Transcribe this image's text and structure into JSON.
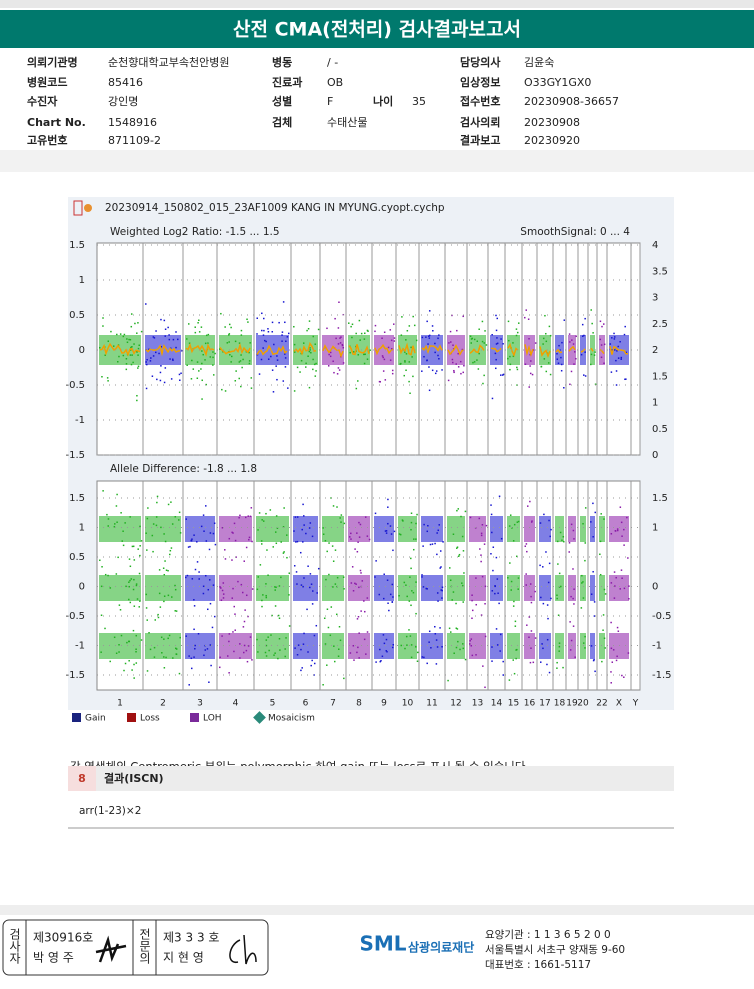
{
  "header": {
    "title": "산전 CMA(전처리) 검사결과보고서"
  },
  "info": {
    "left": [
      {
        "label": "의뢰기관명",
        "value": "순천향대학교부속천안병원"
      },
      {
        "label": "병원코드",
        "value": "85416"
      },
      {
        "label": "수진자",
        "value": "강인명"
      },
      {
        "label": "Chart No.",
        "value": "1548916"
      },
      {
        "label": "고유번호",
        "value": "871109-2"
      }
    ],
    "middle": [
      {
        "label": "병동",
        "value": "/ -"
      },
      {
        "label": "진료과",
        "value": "OB"
      },
      {
        "label": "성별",
        "value": "F"
      },
      {
        "label": "검체",
        "value": "수태산물"
      }
    ],
    "age": {
      "label": "나이",
      "value": "35"
    },
    "right": [
      {
        "label": "담당의사",
        "value": "김윤숙"
      },
      {
        "label": "임상정보",
        "value": "O33GY1GX0"
      },
      {
        "label": "접수번호",
        "value": "20230908-36657"
      },
      {
        "label": "검사의뢰",
        "value": "20230908"
      },
      {
        "label": "결과보고",
        "value": "20230920"
      }
    ]
  },
  "plot": {
    "filename": "20230914_150802_015_23AF1009 KANG IN MYUNG.cyopt.cychp",
    "top": {
      "label": "Weighted Log2 Ratio: -1.5 ... 1.5",
      "right_label": "SmoothSignal: 0 ... 4",
      "left_ticks": [
        "1.5",
        "1",
        "0.5",
        "0",
        "-0.5",
        "-1",
        "-1.5"
      ],
      "right_ticks": [
        "4",
        "3.5",
        "3",
        "2.5",
        "2",
        "1.5",
        "1",
        "0.5",
        "0"
      ]
    },
    "bottom": {
      "label": "Allele Difference: -1.8 ... 1.8",
      "left_ticks": [
        "1.5",
        "1",
        "0.5",
        "0",
        "-0.5",
        "-1",
        "-1.5"
      ],
      "right_ticks": [
        "1.5",
        "1",
        "0",
        "-0.5",
        "-1",
        "-1.5"
      ]
    },
    "chromosomes": [
      "1",
      "2",
      "3",
      "4",
      "5",
      "6",
      "7",
      "8",
      "9",
      "10",
      "11",
      "12",
      "13",
      "14",
      "15",
      "16",
      "17",
      "18",
      "19",
      "20",
      null,
      "22",
      "X",
      "Y"
    ],
    "legend": [
      "Gain",
      "Loss",
      "LOH",
      "Mosaicism"
    ]
  },
  "note": "각 염색체의 Centromeric 부위는 polymorphic 하여 gain 또는 loss로 표시 될 수 있습니다.",
  "result": {
    "number": "8",
    "title": "결과(ISCN)",
    "text": "arr(1-23)×2"
  },
  "footer": {
    "examiner_label": "검사자",
    "examiner_no": "제30916호",
    "examiner_name": "박 영 주",
    "specialist_label": "전문의",
    "specialist_no": "제3 3 3 호",
    "specialist_name": "지 현 영",
    "logo": "SML",
    "org": "삼광의료재단",
    "lines": [
      "요양기관 : 1 1 3 6 5 2 0 0",
      "서울특별시 서초구 양재동 9-60",
      "대표번호 : 1661-5117"
    ]
  }
}
